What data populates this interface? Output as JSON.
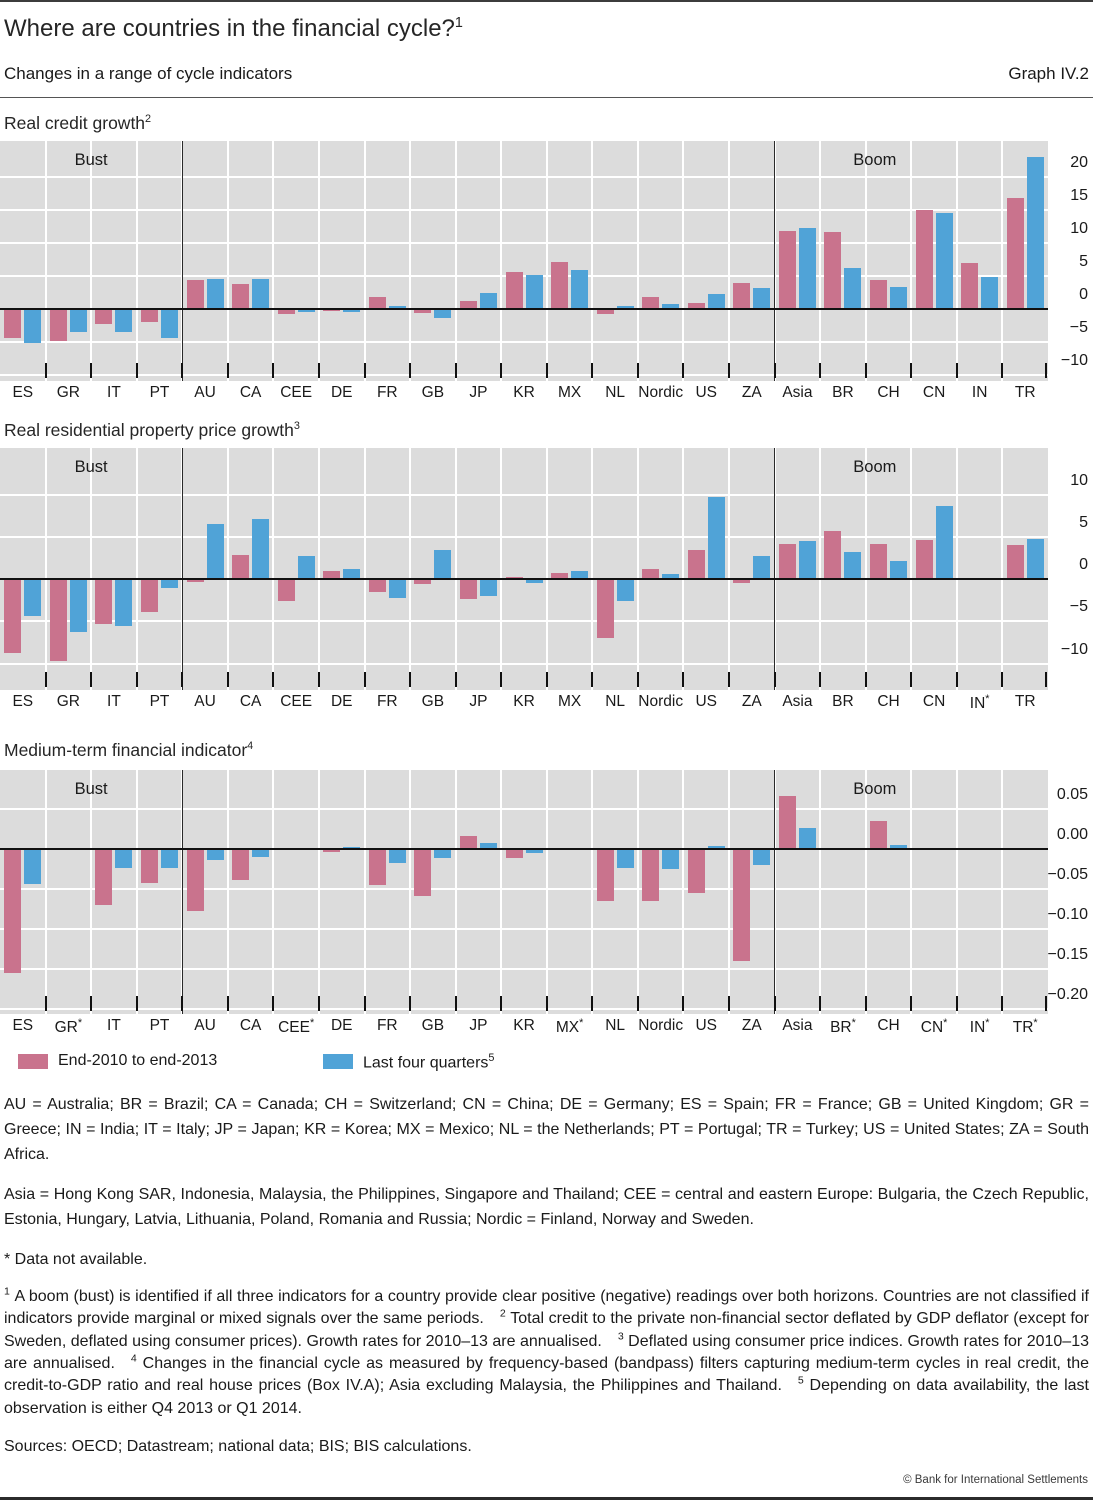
{
  "header": {
    "title": "Where are countries in the financial cycle?",
    "title_sup": "1",
    "subtitle": "Changes in a range of cycle indicators",
    "graph_label": "Graph IV.2"
  },
  "colors": {
    "series1": "#c9738d",
    "series2": "#50a3d7",
    "plot_background": "#dcdcdc",
    "gridline": "#ffffff",
    "zero_line": "#111111"
  },
  "chart_data": [
    {
      "type": "bar",
      "title": "Real credit growth",
      "title_sup": "2",
      "categories": [
        "ES",
        "GR",
        "IT",
        "PT",
        "AU",
        "CA",
        "CEE",
        "DE",
        "FR",
        "GB",
        "JP",
        "KR",
        "MX",
        "NL",
        "Nordic",
        "US",
        "ZA",
        "Asia",
        "BR",
        "CH",
        "CN",
        "IN",
        "TR"
      ],
      "starred": [],
      "series": [
        {
          "name": "End-2010 to end-2013",
          "values": [
            -4.4,
            -4.8,
            -2.3,
            -1.9,
            4.4,
            3.8,
            -0.8,
            -0.2,
            1.9,
            -0.6,
            1.2,
            5.6,
            7.2,
            -0.7,
            1.8,
            1.0,
            4.0,
            11.9,
            11.7,
            4.4,
            15.1,
            7.0,
            16.8
          ]
        },
        {
          "name": "Last four quarters",
          "values": [
            -5.1,
            -3.4,
            -3.4,
            -4.4,
            4.5,
            4.5,
            -0.5,
            -0.5,
            0.4,
            -1.3,
            2.5,
            5.2,
            6.0,
            0.4,
            0.8,
            2.3,
            3.2,
            12.3,
            6.3,
            3.3,
            14.6,
            4.8,
            23.1
          ]
        }
      ],
      "yticks": [
        20,
        15,
        10,
        5,
        0,
        -5,
        -10
      ],
      "ytick_labels": [
        "20",
        "15",
        "10",
        "5",
        "0",
        "−5",
        "−10"
      ],
      "ylim": [
        -10.9,
        25.5
      ],
      "grid": true,
      "region_labels": {
        "bust": "Bust",
        "boom": "Boom"
      },
      "separators_after": [
        3,
        16
      ]
    },
    {
      "type": "bar",
      "title": "Real residential property price growth",
      "title_sup": "3",
      "categories": [
        "ES",
        "GR",
        "IT",
        "PT",
        "AU",
        "CA",
        "CEE",
        "DE",
        "FR",
        "GB",
        "JP",
        "KR",
        "MX",
        "NL",
        "Nordic",
        "US",
        "ZA",
        "Asia",
        "BR",
        "CH",
        "CN",
        "IN",
        "TR"
      ],
      "starred": [
        "IN"
      ],
      "series": [
        {
          "name": "End-2010 to end-2013",
          "values": [
            -8.7,
            -9.7,
            -5.3,
            -3.9,
            -0.3,
            2.9,
            -2.6,
            1.0,
            -1.5,
            -0.6,
            -2.3,
            0.2,
            0.7,
            -7.0,
            1.2,
            3.4,
            -0.5,
            4.1,
            5.7,
            4.2,
            4.6,
            null,
            4.0
          ]
        },
        {
          "name": "Last four quarters",
          "values": [
            -4.3,
            -6.2,
            -5.5,
            -1.0,
            6.5,
            7.1,
            2.7,
            1.2,
            -2.2,
            3.4,
            -2.0,
            -0.4,
            1.0,
            -2.6,
            0.6,
            9.7,
            2.7,
            4.5,
            3.2,
            2.1,
            8.6,
            null,
            4.8
          ]
        }
      ],
      "yticks": [
        10,
        5,
        0,
        -5,
        -10
      ],
      "ytick_labels": [
        "10",
        "5",
        "0",
        "−5",
        "−10"
      ],
      "ylim": [
        -13.1,
        15.5
      ],
      "grid": true,
      "region_labels": {
        "bust": "Bust",
        "boom": "Boom"
      },
      "separators_after": [
        3,
        16
      ]
    },
    {
      "type": "bar",
      "title": "Medium-term financial indicator",
      "title_sup": "4",
      "categories": [
        "ES",
        "GR",
        "IT",
        "PT",
        "AU",
        "CA",
        "CEE",
        "DE",
        "FR",
        "GB",
        "JP",
        "KR",
        "MX",
        "NL",
        "Nordic",
        "US",
        "ZA",
        "Asia",
        "BR",
        "CH",
        "CN",
        "IN",
        "TR"
      ],
      "starred": [
        "GR",
        "CEE",
        "MX",
        "BR",
        "CN",
        "IN",
        "TR"
      ],
      "series": [
        {
          "name": "End-2010 to end-2013",
          "values": [
            -0.155,
            null,
            -0.07,
            -0.042,
            -0.077,
            -0.039,
            null,
            -0.003,
            -0.045,
            -0.058,
            0.017,
            -0.011,
            null,
            -0.065,
            -0.065,
            -0.055,
            -0.14,
            0.067,
            null,
            0.035,
            null,
            null,
            null
          ]
        },
        {
          "name": "Last four quarters",
          "values": [
            -0.043,
            null,
            -0.024,
            -0.023,
            -0.013,
            -0.01,
            null,
            0.003,
            -0.017,
            -0.011,
            0.008,
            -0.005,
            null,
            -0.023,
            -0.025,
            0.004,
            -0.02,
            0.027,
            null,
            0.005,
            null,
            null,
            null
          ]
        }
      ],
      "yticks": [
        0.05,
        0,
        -0.05,
        -0.1,
        -0.15,
        -0.2
      ],
      "ytick_labels": [
        "0.05",
        "0.00",
        "−0.05",
        "−0.10",
        "−0.15",
        "−0.20"
      ],
      "ylim": [
        -0.206,
        0.099
      ],
      "grid": true,
      "region_labels": {
        "bust": "Bust",
        "boom": "Boom"
      },
      "separators_after": [
        3,
        16
      ]
    }
  ],
  "legend": {
    "items": [
      {
        "label": "End-2010 to end-2013",
        "color": "#c9738d"
      },
      {
        "label": "Last four quarters",
        "sup": "5",
        "color": "#50a3d7"
      }
    ]
  },
  "texts": {
    "abbrev1": "AU = Australia; BR = Brazil; CA = Canada; CH = Switzerland; CN = China; DE = Germany; ES = Spain; FR = France; GB = United Kingdom; GR = Greece; IN = India; IT = Italy; JP = Japan; KR = Korea; MX = Mexico; NL = the Netherlands; PT = Portugal; TR = Turkey; US = United States;  ZA = South Africa.",
    "abbrev2": "Asia = Hong Kong SAR, Indonesia, Malaysia, the Philippines, Singapore and Thailand; CEE = central and eastern Europe: Bulgaria, the Czech  Republic, Estonia, Hungary, Latvia, Lithuania, Poland, Romania and Russia; Nordic = Finland, Norway and Sweden.",
    "star_note": "* Data not available.",
    "sources": "Sources: OECD; Datastream; national data; BIS; BIS calculations."
  },
  "footnotes": [
    {
      "marker": "1",
      "text": "A boom (bust) is identified if all three indicators for a country provide clear positive (negative) readings over both horizons. Countries are not classified if indicators provide marginal or mixed signals over the same periods."
    },
    {
      "marker": "2",
      "text": "Total credit to the private non-financial sector deflated by GDP deflator (except for Sweden, deflated using consumer prices). Growth rates for 2010–13 are annualised."
    },
    {
      "marker": "3",
      "text": "Deflated using consumer price indices. Growth rates for 2010–13 are annualised."
    },
    {
      "marker": "4",
      "text": "Changes in the financial cycle as measured by frequency-based (bandpass) filters capturing medium-term cycles in real credit, the credit-to-GDP ratio and real house prices (Box IV.A); Asia excluding Malaysia, the Philippines and Thailand."
    },
    {
      "marker": "5",
      "text": "Depending on data availability, the last observation is either Q4 2013 or Q1 2014."
    }
  ],
  "footer": {
    "copyright": "© Bank for International Settlements"
  }
}
